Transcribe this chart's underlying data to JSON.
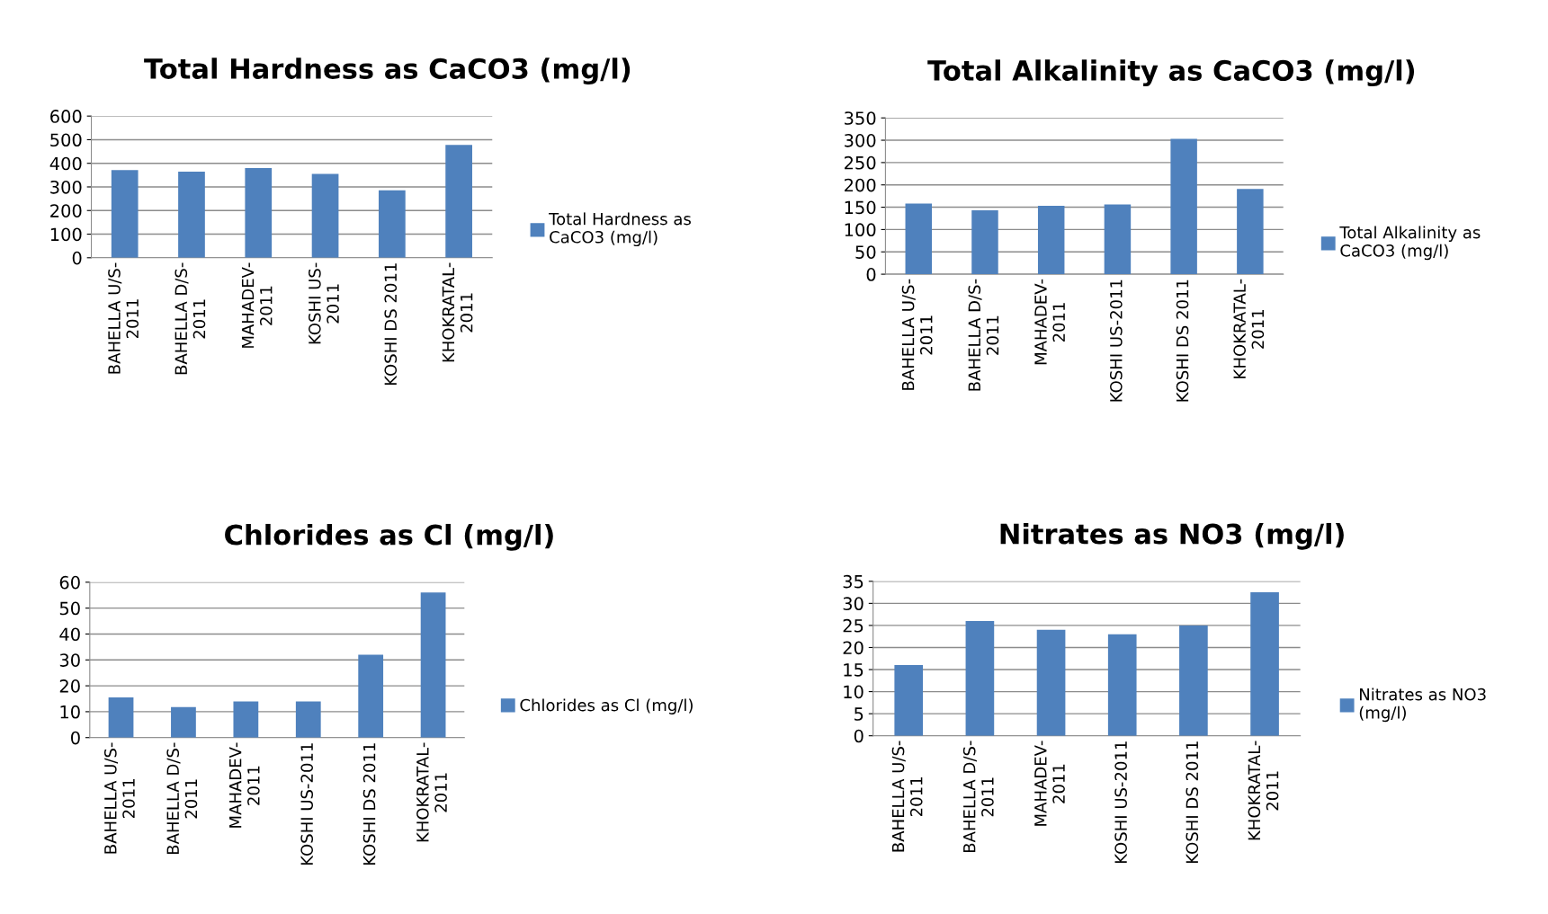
{
  "chart_data": [
    {
      "type": "bar",
      "title": "Total Hardness as CaCO3 (mg/l)",
      "categories": [
        "BAHELLA U/S-\n2011",
        "BAHELLA D/S-\n2011",
        "MAHADEV-\n2011",
        "KOSHI US-\n2011",
        "KOSHI DS 2011",
        "KHOKRATAL-\n2011"
      ],
      "series": [
        {
          "name": "Total Hardness as\nCaCO3 (mg/l)",
          "color": "#4f81bd",
          "values": [
            371,
            365,
            380,
            355,
            286,
            478
          ]
        }
      ],
      "ylim": [
        0,
        600
      ],
      "yticks": [
        0,
        100,
        200,
        300,
        400,
        500,
        600
      ],
      "grid": "y",
      "legend": "right"
    },
    {
      "type": "bar",
      "title": "Total Alkalinity as CaCO3 (mg/l)",
      "categories": [
        "BAHELLA U/S-\n2011",
        "BAHELLA D/S-\n2011",
        "MAHADEV-\n2011",
        "KOSHI US-2011",
        "KOSHI DS 2011",
        "KHOKRATAL-\n2011"
      ],
      "series": [
        {
          "name": "Total Alkalinity as\nCaCO3 (mg/l)",
          "color": "#4f81bd",
          "values": [
            158,
            143,
            153,
            156,
            303,
            191
          ]
        }
      ],
      "ylim": [
        0,
        350
      ],
      "yticks": [
        0,
        50,
        100,
        150,
        200,
        250,
        300,
        350
      ],
      "grid": "y",
      "legend": "right"
    },
    {
      "type": "bar",
      "title": "Chlorides as Cl (mg/l)",
      "categories": [
        "BAHELLA U/S-\n2011",
        "BAHELLA D/S-\n2011",
        "MAHADEV-\n2011",
        "KOSHI US-2011",
        "KOSHI DS 2011",
        "KHOKRATAL-\n2011"
      ],
      "series": [
        {
          "name": "Chlorides as Cl (mg/l)",
          "color": "#4f81bd",
          "values": [
            15.5,
            11.8,
            14,
            14,
            32,
            56
          ]
        }
      ],
      "ylim": [
        0,
        60
      ],
      "yticks": [
        0,
        10,
        20,
        30,
        40,
        50,
        60
      ],
      "grid": "y",
      "legend": "right"
    },
    {
      "type": "bar",
      "title": "Nitrates as NO3 (mg/l)",
      "categories": [
        "BAHELLA U/S-\n2011",
        "BAHELLA D/S-\n2011",
        "MAHADEV-\n2011",
        "KOSHI US-2011",
        "KOSHI DS 2011",
        "KHOKRATAL-\n2011"
      ],
      "series": [
        {
          "name": "Nitrates as NO3\n(mg/l)",
          "color": "#4f81bd",
          "values": [
            16,
            26,
            24,
            23,
            25,
            32.5
          ]
        }
      ],
      "ylim": [
        0,
        35
      ],
      "yticks": [
        0,
        5,
        10,
        15,
        20,
        25,
        30,
        35
      ],
      "grid": "y",
      "legend": "right"
    }
  ]
}
